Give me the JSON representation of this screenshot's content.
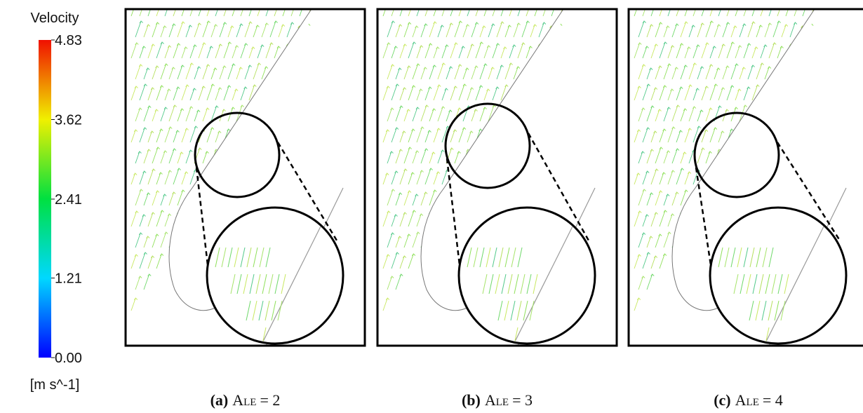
{
  "colorbar": {
    "title": "Velocity",
    "unit": "[m s^-1]",
    "ticks": [
      {
        "value": 0,
        "label": "0.00"
      },
      {
        "value": 1.21,
        "label": "1.21"
      },
      {
        "value": 2.41,
        "label": "2.41"
      },
      {
        "value": 3.62,
        "label": "3.62"
      },
      {
        "value": 4.83,
        "label": "4.83"
      }
    ]
  },
  "panels": [
    {
      "label": "(a)",
      "symbol": "A",
      "subscript": "LE",
      "equation": "= 2"
    },
    {
      "label": "(b)",
      "symbol": "A",
      "subscript": "LE",
      "equation": "= 3"
    },
    {
      "label": "(c)",
      "symbol": "A",
      "subscript": "LE",
      "equation": "= 4"
    }
  ]
}
